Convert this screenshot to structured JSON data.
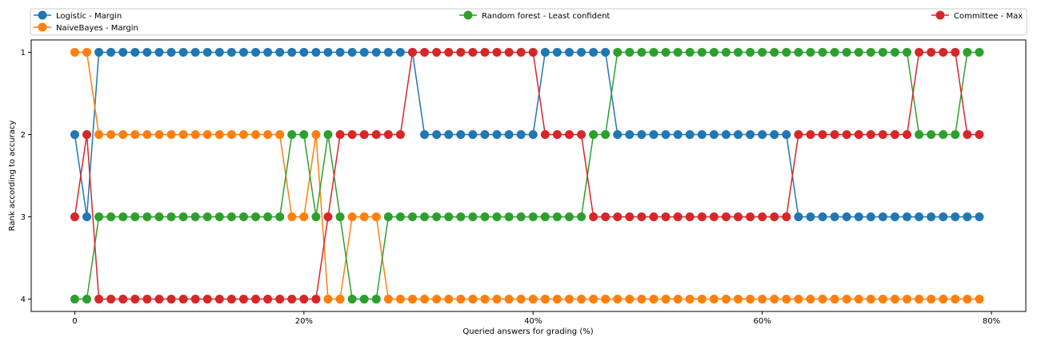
{
  "chart_data": {
    "type": "line",
    "xlabel": "Queried answers for grading (%)",
    "ylabel": "Rank according to accuracy",
    "xlim": [
      -3.8,
      83
    ],
    "ylim": [
      4.15,
      0.85
    ],
    "x_ticks": [
      0,
      20,
      40,
      60,
      80
    ],
    "x_tick_labels": [
      "0",
      "20%",
      "40%",
      "60%",
      "80%"
    ],
    "y_ticks": [
      1,
      2,
      3,
      4
    ],
    "y_tick_labels": [
      "1",
      "2",
      "3",
      "4"
    ],
    "grid": false,
    "legend_position": "top, above plot, 3 columns",
    "x": [
      0,
      1.053,
      2.105,
      3.158,
      4.211,
      5.263,
      6.316,
      7.368,
      8.421,
      9.474,
      10.526,
      11.579,
      12.632,
      13.684,
      14.737,
      15.789,
      16.842,
      17.895,
      18.947,
      20.0,
      21.053,
      22.105,
      23.158,
      24.211,
      25.263,
      26.316,
      27.368,
      28.421,
      29.474,
      30.526,
      31.579,
      32.632,
      33.684,
      34.737,
      35.789,
      36.842,
      37.895,
      38.947,
      40.0,
      41.053,
      42.105,
      43.158,
      44.211,
      45.263,
      46.316,
      47.368,
      48.421,
      49.474,
      50.526,
      51.579,
      52.632,
      53.684,
      54.737,
      55.789,
      56.842,
      57.895,
      58.947,
      60.0,
      61.053,
      62.105,
      63.158,
      64.211,
      65.263,
      66.316,
      67.368,
      68.421,
      69.474,
      70.526,
      71.579,
      72.632,
      73.684,
      74.737,
      75.789,
      76.842,
      77.895,
      78.947
    ],
    "series": [
      {
        "name": "Logistic - Margin",
        "color": "#1f77b4",
        "values": [
          2,
          3,
          1,
          1,
          1,
          1,
          1,
          1,
          1,
          1,
          1,
          1,
          1,
          1,
          1,
          1,
          1,
          1,
          1,
          1,
          1,
          1,
          1,
          1,
          1,
          1,
          1,
          1,
          1,
          2,
          2,
          2,
          2,
          2,
          2,
          2,
          2,
          2,
          2,
          1,
          1,
          1,
          1,
          1,
          1,
          2,
          2,
          2,
          2,
          2,
          2,
          2,
          2,
          2,
          2,
          2,
          2,
          2,
          2,
          2,
          3,
          3,
          3,
          3,
          3,
          3,
          3,
          3,
          3,
          3,
          3,
          3,
          3,
          3,
          3,
          3
        ]
      },
      {
        "name": "NaiveBayes - Margin",
        "color": "#ff7f0e",
        "values": [
          1,
          1,
          2,
          2,
          2,
          2,
          2,
          2,
          2,
          2,
          2,
          2,
          2,
          2,
          2,
          2,
          2,
          2,
          3,
          3,
          2,
          4,
          4,
          3,
          3,
          3,
          4,
          4,
          4,
          4,
          4,
          4,
          4,
          4,
          4,
          4,
          4,
          4,
          4,
          4,
          4,
          4,
          4,
          4,
          4,
          4,
          4,
          4,
          4,
          4,
          4,
          4,
          4,
          4,
          4,
          4,
          4,
          4,
          4,
          4,
          4,
          4,
          4,
          4,
          4,
          4,
          4,
          4,
          4,
          4,
          4,
          4,
          4,
          4,
          4,
          4
        ]
      },
      {
        "name": "Random forest - Least confident",
        "color": "#2ca02c",
        "values": [
          4,
          4,
          3,
          3,
          3,
          3,
          3,
          3,
          3,
          3,
          3,
          3,
          3,
          3,
          3,
          3,
          3,
          3,
          2,
          2,
          3,
          2,
          3,
          4,
          4,
          4,
          3,
          3,
          3,
          3,
          3,
          3,
          3,
          3,
          3,
          3,
          3,
          3,
          3,
          3,
          3,
          3,
          3,
          2,
          2,
          1,
          1,
          1,
          1,
          1,
          1,
          1,
          1,
          1,
          1,
          1,
          1,
          1,
          1,
          1,
          1,
          1,
          1,
          1,
          1,
          1,
          1,
          1,
          1,
          1,
          2,
          2,
          2,
          2,
          1,
          1
        ]
      },
      {
        "name": "Committee - Max",
        "color": "#d62728",
        "values": [
          3,
          2,
          4,
          4,
          4,
          4,
          4,
          4,
          4,
          4,
          4,
          4,
          4,
          4,
          4,
          4,
          4,
          4,
          4,
          4,
          4,
          3,
          2,
          2,
          2,
          2,
          2,
          2,
          1,
          1,
          1,
          1,
          1,
          1,
          1,
          1,
          1,
          1,
          1,
          2,
          2,
          2,
          2,
          3,
          3,
          3,
          3,
          3,
          3,
          3,
          3,
          3,
          3,
          3,
          3,
          3,
          3,
          3,
          3,
          3,
          2,
          2,
          2,
          2,
          2,
          2,
          2,
          2,
          2,
          2,
          1,
          1,
          1,
          1,
          2,
          2
        ]
      }
    ]
  }
}
